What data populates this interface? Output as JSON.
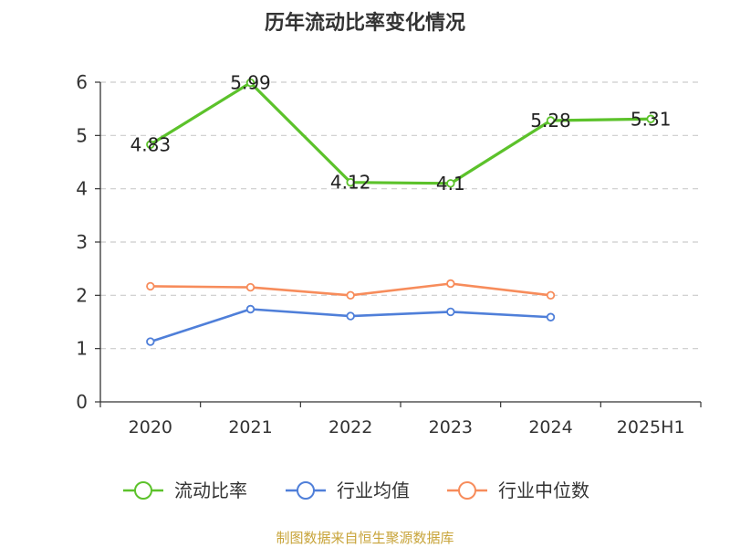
{
  "chart_data": {
    "type": "line",
    "title": "历年流动比率变化情况",
    "categories": [
      "2020",
      "2021",
      "2022",
      "2023",
      "2024",
      "2025H1"
    ],
    "ylim": [
      0,
      6
    ],
    "yticks": [
      0,
      1,
      2,
      3,
      4,
      5,
      6
    ],
    "grid": true,
    "legend_position": "bottom",
    "series": [
      {
        "name": "流动比率",
        "color": "#5cc22b",
        "values": [
          4.83,
          5.99,
          4.12,
          4.1,
          5.28,
          5.31
        ],
        "labels": [
          "4.83",
          "5.99",
          "4.12",
          "4.1",
          "5.28",
          "5.31"
        ]
      },
      {
        "name": "行业均值",
        "color": "#4f7fd9",
        "values": [
          1.13,
          1.74,
          1.61,
          1.69,
          1.59,
          null
        ]
      },
      {
        "name": "行业中位数",
        "color": "#f78c5b",
        "values": [
          2.17,
          2.15,
          2.0,
          2.22,
          2.0,
          null
        ]
      }
    ]
  },
  "footer": {
    "source": "制图数据来自恒生聚源数据库"
  }
}
